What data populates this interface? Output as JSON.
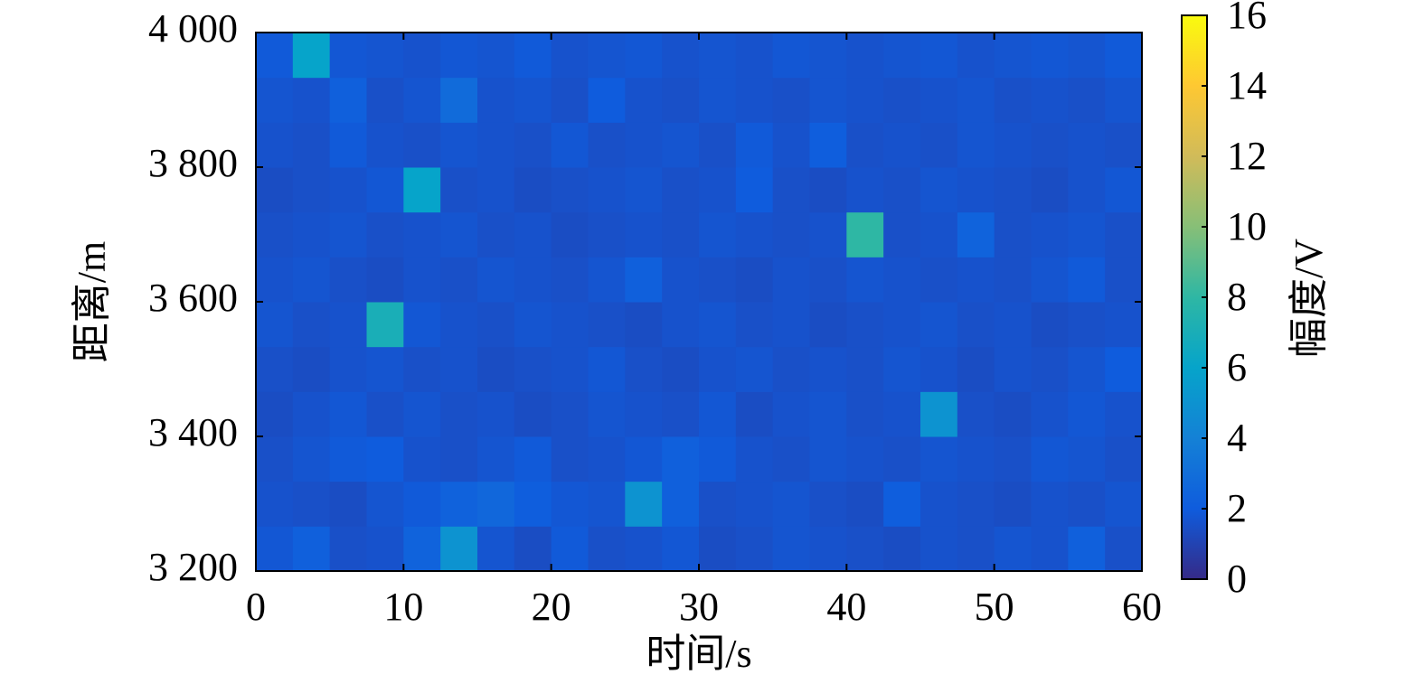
{
  "chart_data": {
    "type": "heatmap",
    "x_label": "时间/s",
    "y_label": "距离/m",
    "colorbar_label": "幅度/V",
    "xlim": [
      0,
      60
    ],
    "xticks": [
      0,
      10,
      20,
      30,
      40,
      50,
      60
    ],
    "ylim": [
      3200,
      4000
    ],
    "yticks": [
      {
        "value": 3200,
        "label": "3 200"
      },
      {
        "value": 3400,
        "label": "3 400"
      },
      {
        "value": 3600,
        "label": "3 600"
      },
      {
        "value": 3800,
        "label": "3 800"
      },
      {
        "value": 4000,
        "label": "4 000"
      }
    ],
    "zlim": [
      0,
      16
    ],
    "zticks": [
      0,
      2,
      4,
      6,
      8,
      10,
      12,
      14,
      16
    ],
    "colormap": [
      "#352a87",
      "#0f5cdd",
      "#1481d6",
      "#06a4ca",
      "#2eb7a4",
      "#87bf77",
      "#d1bb59",
      "#fec832",
      "#f9fb0e"
    ],
    "z": [
      [
        1.8,
        2.2,
        1.5,
        1.6,
        2.4,
        5.0,
        1.7,
        1.4,
        1.9,
        1.5,
        1.6,
        1.8,
        1.4,
        1.5,
        1.7,
        1.6,
        1.5,
        1.4,
        1.6,
        1.5,
        1.7,
        1.6,
        2.2,
        1.5
      ],
      [
        1.6,
        1.5,
        1.4,
        1.7,
        1.9,
        2.3,
        2.6,
        2.1,
        1.8,
        1.7,
        5.0,
        2.2,
        1.5,
        1.6,
        1.7,
        1.5,
        1.4,
        2.1,
        1.6,
        1.5,
        1.4,
        1.6,
        1.5,
        1.7
      ],
      [
        1.5,
        1.7,
        1.9,
        2.0,
        1.6,
        1.5,
        1.7,
        1.9,
        1.5,
        1.6,
        1.8,
        2.2,
        1.9,
        1.6,
        1.5,
        1.7,
        1.6,
        1.5,
        1.7,
        1.6,
        1.5,
        1.8,
        1.7,
        1.5
      ],
      [
        1.4,
        1.6,
        1.8,
        1.5,
        1.7,
        1.5,
        1.6,
        1.4,
        1.5,
        1.7,
        1.6,
        1.5,
        1.8,
        1.4,
        1.6,
        1.7,
        1.5,
        1.6,
        5.0,
        1.5,
        1.4,
        1.6,
        1.8,
        1.6
      ],
      [
        1.5,
        1.4,
        1.6,
        1.7,
        1.5,
        1.6,
        1.4,
        1.5,
        1.6,
        1.8,
        1.5,
        1.4,
        1.6,
        1.7,
        1.5,
        1.6,
        1.5,
        1.7,
        1.6,
        1.4,
        1.6,
        1.5,
        1.7,
        2.0
      ],
      [
        1.7,
        1.5,
        1.6,
        7.0,
        1.8,
        1.6,
        1.5,
        1.7,
        1.6,
        1.5,
        1.4,
        1.6,
        1.7,
        1.5,
        1.6,
        1.4,
        1.5,
        1.6,
        1.7,
        1.5,
        1.6,
        1.4,
        1.5,
        1.6
      ],
      [
        1.6,
        1.7,
        1.5,
        1.4,
        1.6,
        1.5,
        1.7,
        1.6,
        1.5,
        1.7,
        2.2,
        1.6,
        1.5,
        1.4,
        1.6,
        1.5,
        1.7,
        1.6,
        1.5,
        1.6,
        1.5,
        1.7,
        1.9,
        1.5
      ],
      [
        1.5,
        1.6,
        1.7,
        1.5,
        1.6,
        1.7,
        1.5,
        1.6,
        1.4,
        1.5,
        1.6,
        1.5,
        1.7,
        1.6,
        1.5,
        1.6,
        8.0,
        1.5,
        1.6,
        2.4,
        1.5,
        1.6,
        1.7,
        1.5
      ],
      [
        1.4,
        1.5,
        1.6,
        1.8,
        6.0,
        1.5,
        1.6,
        1.4,
        1.5,
        1.6,
        1.7,
        1.5,
        1.6,
        2.0,
        1.5,
        1.4,
        1.6,
        1.5,
        1.7,
        1.6,
        1.5,
        1.4,
        1.6,
        1.8
      ],
      [
        1.6,
        1.5,
        1.9,
        1.6,
        1.5,
        1.7,
        1.6,
        1.5,
        1.8,
        1.5,
        1.6,
        1.7,
        1.5,
        1.9,
        1.6,
        2.1,
        1.5,
        1.6,
        1.5,
        1.7,
        1.6,
        1.5,
        1.6,
        1.5
      ],
      [
        1.7,
        1.6,
        2.2,
        1.5,
        1.7,
        2.8,
        1.6,
        1.7,
        1.5,
        2.0,
        1.6,
        1.5,
        1.7,
        1.6,
        1.5,
        1.7,
        1.6,
        1.5,
        1.6,
        1.7,
        1.5,
        1.6,
        1.5,
        1.7
      ],
      [
        1.9,
        6.0,
        1.8,
        1.7,
        1.6,
        1.8,
        1.7,
        1.9,
        1.6,
        1.7,
        1.8,
        1.6,
        1.7,
        1.6,
        1.8,
        1.7,
        1.6,
        1.7,
        1.8,
        1.6,
        1.7,
        1.8,
        1.7,
        1.9
      ]
    ]
  }
}
